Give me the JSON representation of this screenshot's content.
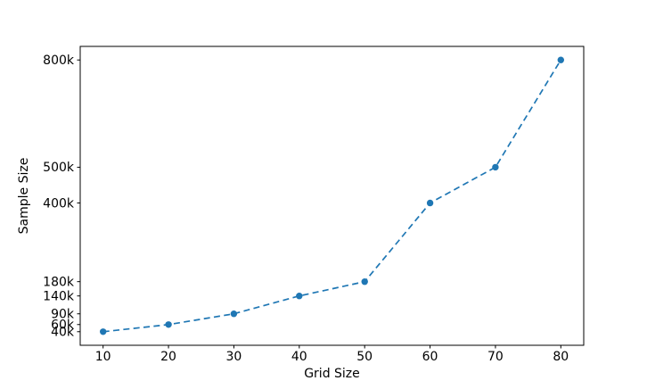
{
  "figure": {
    "background": "#ffffff"
  },
  "chart_data": {
    "type": "line",
    "title": "",
    "xlabel": "Grid Size",
    "ylabel": "Sample Size",
    "x": [
      10,
      20,
      30,
      40,
      50,
      60,
      70,
      80
    ],
    "y": [
      40000,
      60000,
      90000,
      140000,
      180000,
      400000,
      500000,
      800000
    ],
    "x_tick_labels": [
      "10",
      "20",
      "30",
      "40",
      "50",
      "60",
      "70",
      "80"
    ],
    "y_ticks": [
      {
        "value": 40000,
        "label": "40k"
      },
      {
        "value": 60000,
        "label": "60k"
      },
      {
        "value": 90000,
        "label": "90k"
      },
      {
        "value": 140000,
        "label": "140k"
      },
      {
        "value": 180000,
        "label": "180k"
      },
      {
        "value": 400000,
        "label": "400k"
      },
      {
        "value": 500000,
        "label": "500k"
      },
      {
        "value": 800000,
        "label": "800k"
      }
    ],
    "xlim": [
      6.5,
      83.5
    ],
    "ylim": [
      2000,
      838000
    ],
    "y_scale": "linear",
    "grid": false,
    "legend": null,
    "line": {
      "color": "#1f77b4",
      "style": "dashed",
      "marker": "circle",
      "marker_color": "#1f77b4"
    },
    "axis_color": "#000000",
    "text_color": "#000000"
  }
}
